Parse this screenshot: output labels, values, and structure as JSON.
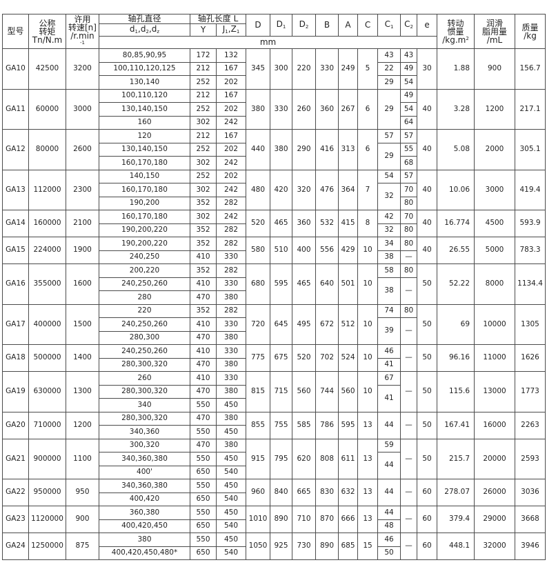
{
  "header": {
    "model": "型号",
    "torque": [
      "公称",
      "转矩",
      "Tn/N.m"
    ],
    "speed": [
      "许用",
      "转速[n]",
      "/r.min",
      "-1"
    ],
    "bore_diameter": "轴孔直径",
    "bore_diameter_sub": {
      "parts": [
        [
          "d",
          "1"
        ],
        [
          "d",
          "2"
        ],
        [
          "d",
          "z"
        ]
      ]
    },
    "bore_length": "轴孔长度 L",
    "Y": "Y",
    "J1Z1": {
      "parts": [
        [
          "J",
          "1"
        ],
        [
          "Z",
          "1"
        ]
      ]
    },
    "D": "D",
    "D1": [
      "D",
      "1"
    ],
    "D2": [
      "D",
      "2"
    ],
    "B": "B",
    "A": "A",
    "C": "C",
    "C1": [
      "C",
      "1"
    ],
    "C2": [
      "C",
      "2"
    ],
    "e": "e",
    "unit_mm": "mm",
    "inertia": [
      "转动",
      "惯量",
      "/kg.m",
      "2"
    ],
    "grease": [
      "润滑",
      "脂用量",
      "/mL"
    ],
    "mass": [
      "质量",
      "/kg"
    ]
  },
  "rows": [
    {
      "model": "GA10",
      "torque": "42500",
      "speed": "3200",
      "bores": [
        [
          "80,85,90,95",
          "172",
          "132"
        ],
        [
          "100,110,120,125",
          "212",
          "167"
        ],
        [
          "130,140",
          "252",
          "202"
        ]
      ],
      "D": "345",
      "D1": "300",
      "D2": "220",
      "B": "330",
      "A": "249",
      "C": "5",
      "c1": [
        [
          "43",
          1
        ],
        [
          "22",
          1
        ],
        [
          "29",
          1
        ]
      ],
      "c2": [
        [
          "43",
          1
        ],
        [
          "49",
          1
        ],
        [
          "54",
          1
        ]
      ],
      "e": "30",
      "inertia": "1.88",
      "grease": "900",
      "mass": "156.7"
    },
    {
      "model": "GA11",
      "torque": "60000",
      "speed": "3000",
      "bores": [
        [
          "100,110,120",
          "212",
          "167"
        ],
        [
          "130,140,150",
          "252",
          "202"
        ],
        [
          "160",
          "302",
          "242"
        ]
      ],
      "D": "380",
      "D1": "330",
      "D2": "260",
      "B": "360",
      "A": "267",
      "C": "6",
      "c1": [
        [
          "29",
          3
        ]
      ],
      "c2": [
        [
          "49",
          1
        ],
        [
          "54",
          1
        ],
        [
          "64",
          1
        ]
      ],
      "e": "40",
      "inertia": "3.28",
      "grease": "1200",
      "mass": "217.1"
    },
    {
      "model": "GA12",
      "torque": "80000",
      "speed": "2600",
      "bores": [
        [
          "120",
          "212",
          "167"
        ],
        [
          "130,140,150",
          "252",
          "202"
        ],
        [
          "160,170,180",
          "302",
          "242"
        ]
      ],
      "D": "440",
      "D1": "380",
      "D2": "290",
      "B": "416",
      "A": "313",
      "C": "6",
      "c1": [
        [
          "57",
          1
        ],
        [
          "29",
          2
        ]
      ],
      "c2": [
        [
          "57",
          1
        ],
        [
          "55",
          1
        ],
        [
          "68",
          1
        ]
      ],
      "e": "40",
      "inertia": "5.08",
      "grease": "2000",
      "mass": "305.1"
    },
    {
      "model": "GA13",
      "torque": "112000",
      "speed": "2300",
      "bores": [
        [
          "140,150",
          "252",
          "202"
        ],
        [
          "160,170,180",
          "302",
          "242"
        ],
        [
          "190,200",
          "352",
          "282"
        ]
      ],
      "D": "480",
      "D1": "420",
      "D2": "320",
      "B": "476",
      "A": "364",
      "C": "7",
      "c1": [
        [
          "54",
          1
        ],
        [
          "32",
          2
        ]
      ],
      "c2": [
        [
          "57",
          1
        ],
        [
          "70",
          1
        ],
        [
          "80",
          1
        ]
      ],
      "e": "40",
      "inertia": "10.06",
      "grease": "3000",
      "mass": "419.4"
    },
    {
      "model": "GA14",
      "torque": "160000",
      "speed": "2100",
      "bores": [
        [
          "160,170,180",
          "302",
          "242"
        ],
        [
          "190,200,220",
          "352",
          "282"
        ]
      ],
      "D": "520",
      "D1": "465",
      "D2": "360",
      "B": "532",
      "A": "415",
      "C": "8",
      "c1": [
        [
          "42",
          1
        ],
        [
          "32",
          1
        ]
      ],
      "c2": [
        [
          "70",
          1
        ],
        [
          "80",
          1
        ]
      ],
      "e": "40",
      "inertia": "16.774",
      "grease": "4500",
      "mass": "593.9"
    },
    {
      "model": "GA15",
      "torque": "224000",
      "speed": "1900",
      "bores": [
        [
          "190,200,220",
          "352",
          "282"
        ],
        [
          "240,250",
          "410",
          "330"
        ]
      ],
      "D": "580",
      "D1": "510",
      "D2": "400",
      "B": "556",
      "A": "429",
      "C": "10",
      "c1": [
        [
          "34",
          1
        ],
        [
          "38",
          1
        ]
      ],
      "c2": [
        [
          "80",
          1
        ],
        [
          "—",
          1
        ]
      ],
      "e": "40",
      "inertia": "26.55",
      "grease": "5000",
      "mass": "783.3"
    },
    {
      "model": "GA16",
      "torque": "355000",
      "speed": "1600",
      "bores": [
        [
          "200,220",
          "352",
          "282"
        ],
        [
          "240,250,260",
          "410",
          "330"
        ],
        [
          "280",
          "470",
          "380"
        ]
      ],
      "D": "680",
      "D1": "595",
      "D2": "465",
      "B": "640",
      "A": "501",
      "C": "10",
      "c1": [
        [
          "58",
          1
        ],
        [
          "38",
          2
        ]
      ],
      "c2": [
        [
          "80",
          1
        ],
        [
          "—",
          2
        ]
      ],
      "e": "50",
      "inertia": "52.22",
      "grease": "8000",
      "mass": "1134.4"
    },
    {
      "model": "GA17",
      "torque": "400000",
      "speed": "1500",
      "bores": [
        [
          "220",
          "352",
          "282"
        ],
        [
          "240,250,260",
          "410",
          "330"
        ],
        [
          "280,300",
          "470",
          "380"
        ]
      ],
      "D": "720",
      "D1": "645",
      "D2": "495",
      "B": "672",
      "A": "512",
      "C": "10",
      "c1": [
        [
          "74",
          1
        ],
        [
          "39",
          2
        ]
      ],
      "c2": [
        [
          "80",
          1
        ],
        [
          "—",
          2
        ]
      ],
      "e": "50",
      "inertia": "69",
      "grease": "10000",
      "mass": "1305"
    },
    {
      "model": "GA18",
      "torque": "500000",
      "speed": "1400",
      "bores": [
        [
          "240,250,260",
          "410",
          "330"
        ],
        [
          "280,300,320",
          "470",
          "380"
        ]
      ],
      "D": "775",
      "D1": "675",
      "D2": "520",
      "B": "702",
      "A": "524",
      "C": "10",
      "c1": [
        [
          "46",
          1
        ],
        [
          "41",
          1
        ]
      ],
      "c2": [
        [
          "—",
          2
        ]
      ],
      "e": "50",
      "inertia": "96.16",
      "grease": "11000",
      "mass": "1626"
    },
    {
      "model": "GA19",
      "torque": "630000",
      "speed": "1300",
      "bores": [
        [
          "260",
          "410",
          "330"
        ],
        [
          "280,300,320",
          "470",
          "380"
        ],
        [
          "340",
          "550",
          "450"
        ]
      ],
      "D": "815",
      "D1": "715",
      "D2": "560",
      "B": "744",
      "A": "560",
      "C": "10",
      "c1": [
        [
          "67",
          1
        ],
        [
          "41",
          2
        ]
      ],
      "c2": [
        [
          "—",
          3
        ]
      ],
      "e": "50",
      "inertia": "115.6",
      "grease": "13000",
      "mass": "1773"
    },
    {
      "model": "GA20",
      "torque": "710000",
      "speed": "1200",
      "bores": [
        [
          "280,300,320",
          "470",
          "380"
        ],
        [
          "340,360",
          "550",
          "450"
        ]
      ],
      "D": "855",
      "D1": "755",
      "D2": "585",
      "B": "786",
      "A": "595",
      "C": "13",
      "c1": [
        [
          "44",
          2
        ]
      ],
      "c2": [
        [
          "—",
          2
        ]
      ],
      "e": "50",
      "inertia": "167.41",
      "grease": "16000",
      "mass": "2263"
    },
    {
      "model": "GA21",
      "torque": "900000",
      "speed": "1100",
      "bores": [
        [
          "300,320",
          "470",
          "380"
        ],
        [
          "340,360,380",
          "550",
          "450"
        ],
        [
          "400'",
          "650",
          "540"
        ]
      ],
      "D": "915",
      "D1": "795",
      "D2": "620",
      "B": "808",
      "A": "611",
      "C": "13",
      "c1": [
        [
          "59",
          1
        ],
        [
          "44",
          2
        ]
      ],
      "c2": [
        [
          "—",
          3
        ]
      ],
      "e": "50",
      "inertia": "215.7",
      "grease": "20000",
      "mass": "2593"
    },
    {
      "model": "GA22",
      "torque": "950000",
      "speed": "950",
      "bores": [
        [
          "340,360,380",
          "550",
          "450"
        ],
        [
          "400,420",
          "650",
          "540"
        ]
      ],
      "D": "960",
      "D1": "840",
      "D2": "665",
      "B": "830",
      "A": "632",
      "C": "13",
      "c1": [
        [
          "44",
          2
        ]
      ],
      "c2": [
        [
          "—",
          2
        ]
      ],
      "e": "60",
      "inertia": "278.07",
      "grease": "26000",
      "mass": "3036"
    },
    {
      "model": "GA23",
      "torque": "1120000",
      "speed": "900",
      "bores": [
        [
          "360,380",
          "550",
          "450"
        ],
        [
          "400,420,450",
          "650",
          "540"
        ]
      ],
      "D": "1010",
      "D1": "890",
      "D2": "710",
      "B": "870",
      "A": "666",
      "C": "13",
      "c1": [
        [
          "44",
          1
        ],
        [
          "48",
          1
        ]
      ],
      "c2": [
        [
          "—",
          2
        ]
      ],
      "e": "60",
      "inertia": "379.4",
      "grease": "29000",
      "mass": "3668"
    },
    {
      "model": "GA24",
      "torque": "1250000",
      "speed": "875",
      "bores": [
        [
          "380",
          "550",
          "450"
        ],
        [
          "400,420,450,480*",
          "650",
          "540"
        ]
      ],
      "D": "1050",
      "D1": "925",
      "D2": "730",
      "B": "890",
      "A": "685",
      "C": "15",
      "c1": [
        [
          "46",
          1
        ],
        [
          "50",
          1
        ]
      ],
      "c2": [
        [
          "—",
          2
        ]
      ],
      "e": "60",
      "inertia": "448.1",
      "grease": "32000",
      "mass": "3946"
    }
  ]
}
